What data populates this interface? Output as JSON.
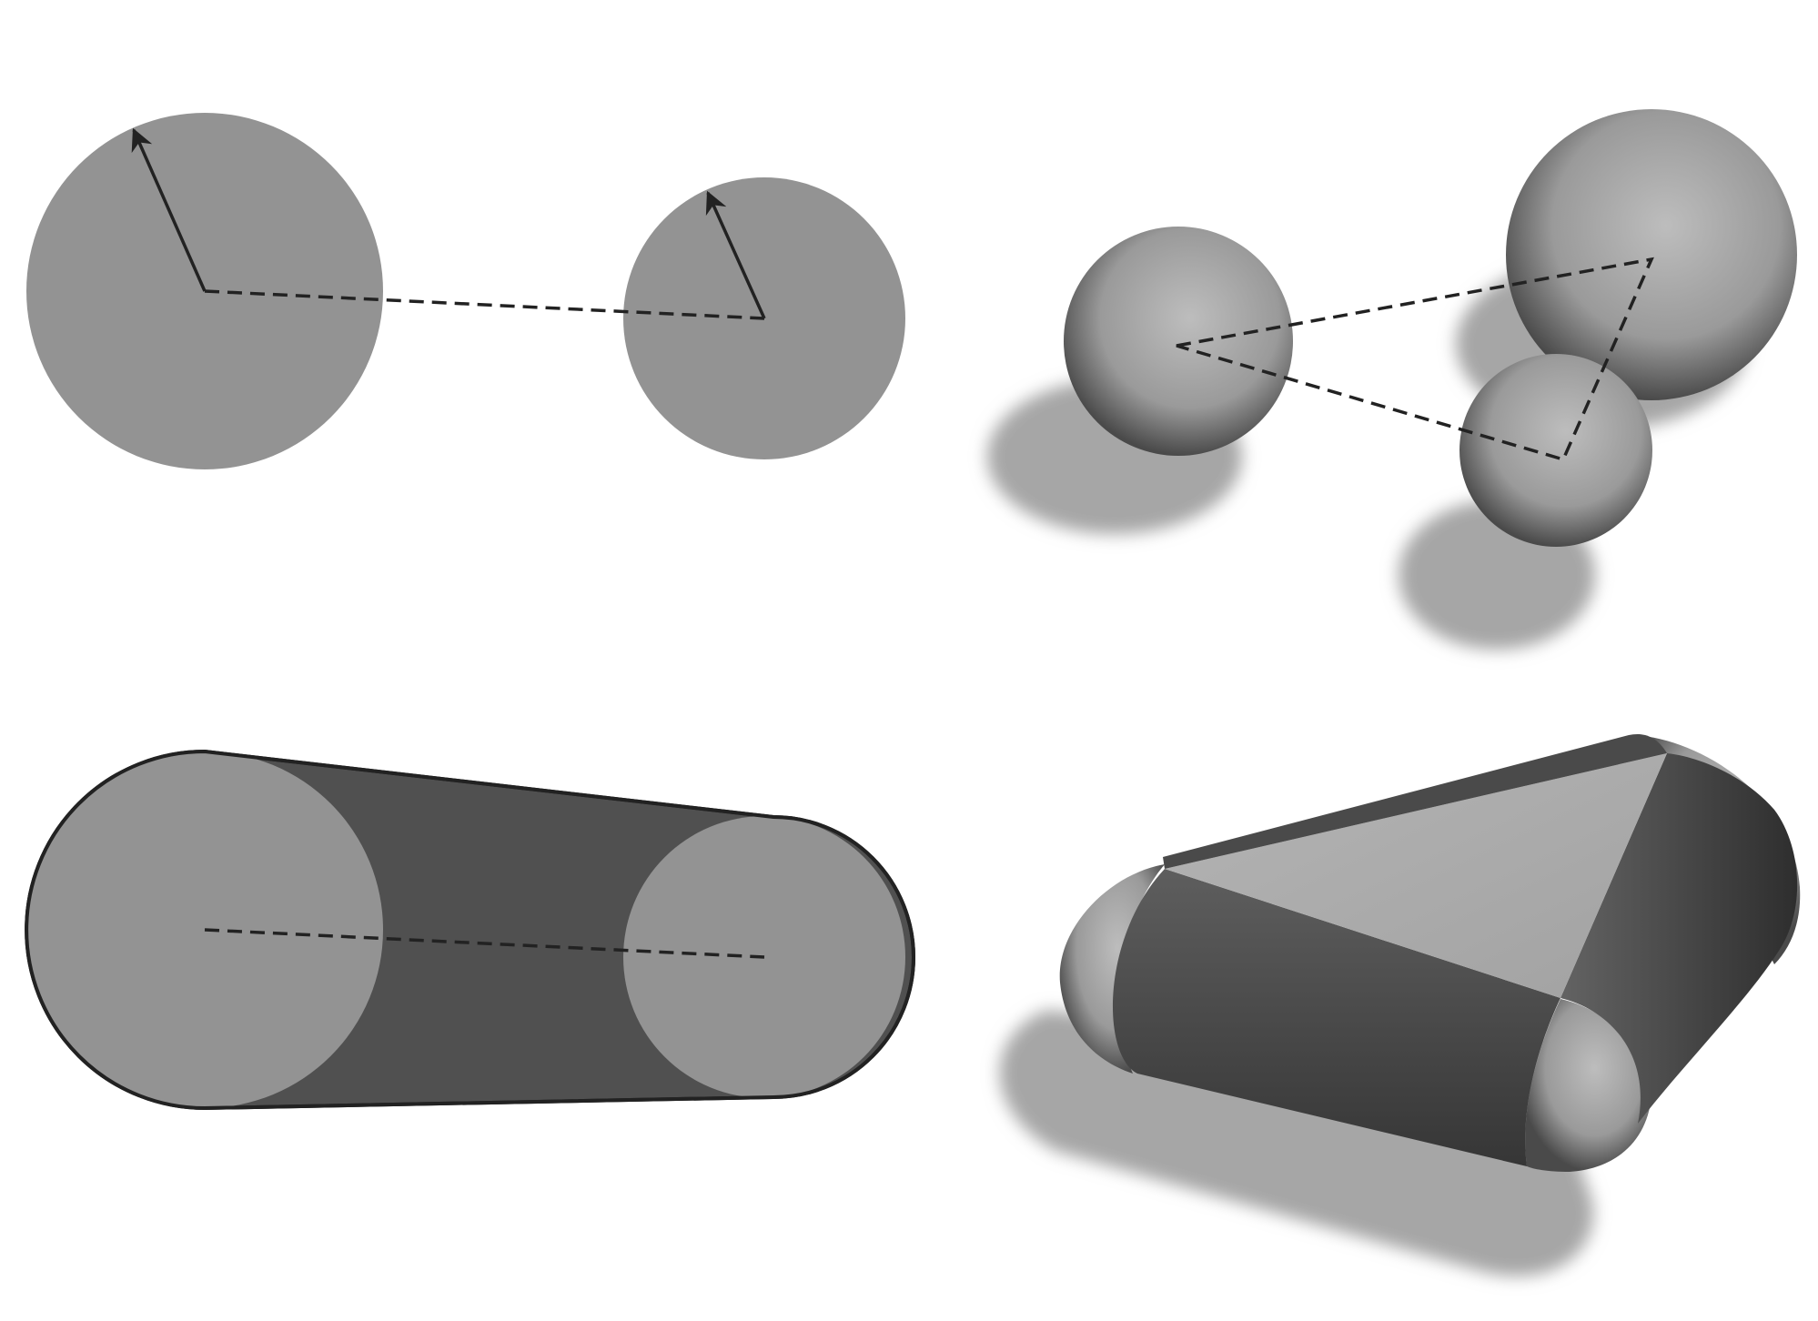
{
  "colors": {
    "background": "#ffffff",
    "flat_fill": "#939393",
    "hull_fill": "#505050",
    "outline": "#222222",
    "dash": "#222222",
    "shadow": "#a6a6a6",
    "sphere_light": "#bdbdbd",
    "sphere_mid": "#9a9a9a",
    "sphere_dark": "#4a4a4a",
    "face_light": "#b0b0b0",
    "face_dark": "#3c3c3c"
  },
  "panels": [
    {
      "id": "two-circles",
      "description_visible": false
    },
    {
      "id": "three-spheres",
      "description_visible": false
    },
    {
      "id": "capsule-hull",
      "description_visible": false
    },
    {
      "id": "triangle-hull",
      "description_visible": false
    }
  ]
}
